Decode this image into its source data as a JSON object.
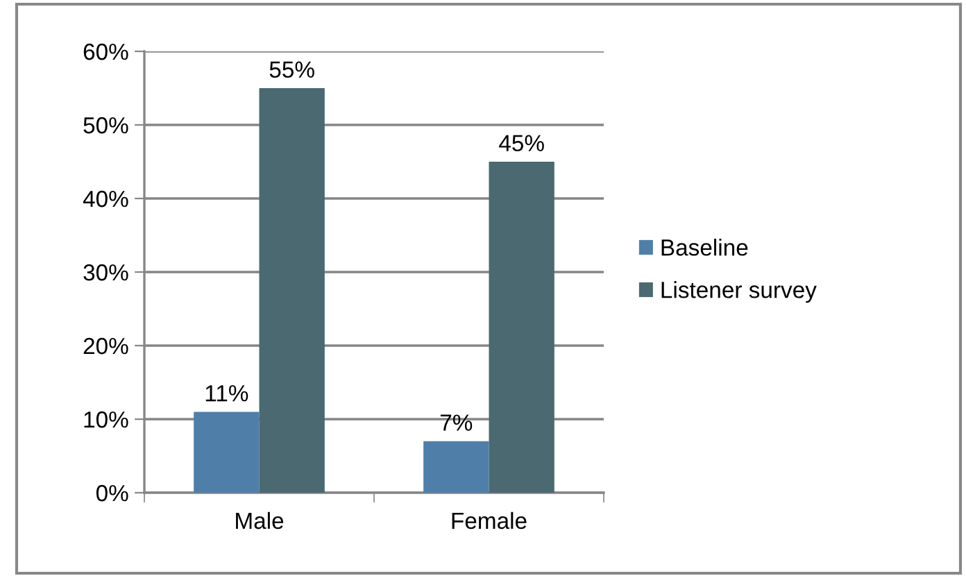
{
  "chart_data": {
    "type": "bar",
    "categories": [
      "Male",
      "Female"
    ],
    "series": [
      {
        "name": "Baseline",
        "color": "#4f7fa9",
        "values": [
          11,
          7
        ],
        "value_labels": [
          "11%",
          "7%"
        ]
      },
      {
        "name": "Listener survey",
        "color": "#4a6971",
        "values": [
          55,
          45
        ],
        "value_labels": [
          "55%",
          "45%"
        ]
      }
    ],
    "ylim": [
      0,
      60
    ],
    "yticks": [
      {
        "value": 0,
        "label": "0%"
      },
      {
        "value": 10,
        "label": "10%"
      },
      {
        "value": 20,
        "label": "20%"
      },
      {
        "value": 30,
        "label": "30%"
      },
      {
        "value": 40,
        "label": "40%"
      },
      {
        "value": 50,
        "label": "50%"
      },
      {
        "value": 60,
        "label": "60%"
      }
    ],
    "grid": "y",
    "legend": "right"
  }
}
